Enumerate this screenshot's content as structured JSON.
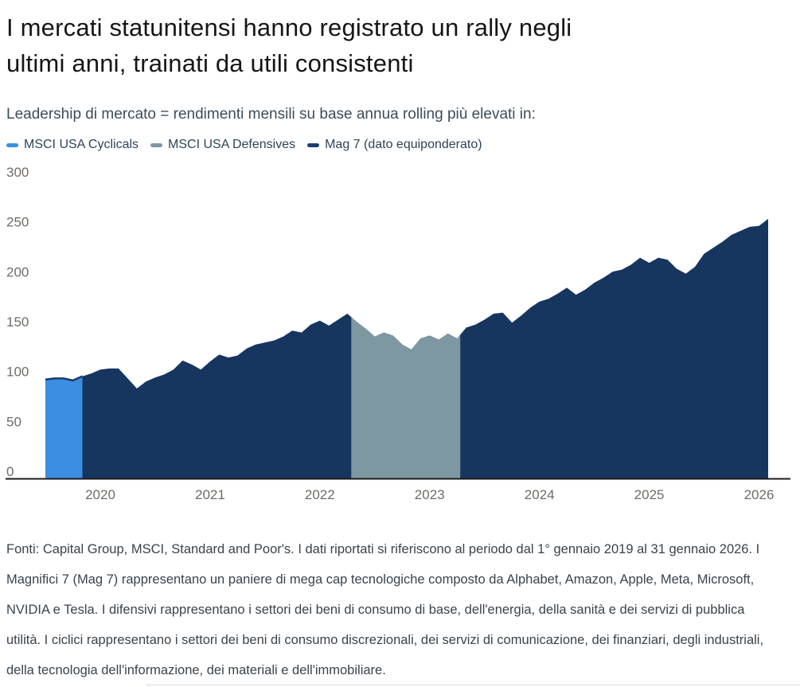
{
  "title_lines": [
    "I mercati statunitensi hanno registrato un rally negli",
    "ultimi anni, trainati da utili consistenti"
  ],
  "subtitle": "Leadership di mercato = rendimenti mensili su base annua rolling più elevati in:",
  "legend": [
    {
      "label": "MSCI USA Cyclicals",
      "color": "#3b8ee2"
    },
    {
      "label": "MSCI USA Defensives",
      "color": "#7e98a2"
    },
    {
      "label": "Mag 7 (dato equiponderato)",
      "color": "#1b4070"
    }
  ],
  "footnote": "Fonti: Capital Group, MSCI, Standard and Poor's. I dati riportati si riferiscono al periodo dal 1° gennaio 2019 al 31 gennaio 2026. I Magnifici 7 (Mag 7) rappresentano un paniere di mega cap tecnologiche composto da Alphabet, Amazon, Apple, Meta, Microsoft, NVIDIA e Tesla. I difensivi rappresentano i settori dei beni di consumo di base, dell'energia, della sanità e dei servizi di pubblica utilità. I ciclici rappresentano i settori dei beni di consumo discrezionali, dei servizi di comunicazione, dei finanziari, degli industriali, della tecnologia dell'informazione, dei materiali e dell'immobiliare.",
  "chart_data": {
    "type": "area",
    "title": "Leadership di mercato = rendimenti mensili su base annua rolling più elevati in",
    "x_start_month": "2019-06",
    "x_end_month": "2026-01",
    "x_note": "monthly month-end points, plotted left to right",
    "ylim": [
      0,
      300
    ],
    "grid": false,
    "legend_position": "top-left",
    "y_tick_labels": [
      "0",
      "50",
      "100",
      "150",
      "200",
      "250",
      "300"
    ],
    "x_tick_labels": [
      "2020",
      "2021",
      "2022",
      "2023",
      "2024",
      "2025",
      "2026"
    ],
    "values": [
      92,
      93,
      93,
      91,
      95,
      98,
      102,
      103,
      103,
      93,
      83,
      90,
      94,
      97,
      102,
      111,
      107,
      102,
      110,
      117,
      114,
      116,
      123,
      127,
      129,
      131,
      135,
      141,
      139,
      147,
      151,
      146,
      152,
      158,
      150,
      143,
      135,
      139,
      136,
      127,
      122,
      133,
      136,
      132,
      138,
      133,
      144,
      147,
      152,
      158,
      159,
      149,
      156,
      164,
      170,
      173,
      178,
      184,
      177,
      182,
      189,
      194,
      200,
      202,
      207,
      214,
      209,
      214,
      212,
      203,
      198,
      205,
      218,
      224,
      230,
      237,
      241,
      245,
      246,
      253
    ],
    "segments": [
      {
        "name": "MSCI USA Cyclicals",
        "from": "2019-06",
        "to": "2019-10",
        "color": "#3b8ee2",
        "edge_color": "#1c3c6a"
      },
      {
        "name": "Mag 7 (dato equiponderato)",
        "from": "2019-10",
        "to": "2022-03",
        "color": "#16355f"
      },
      {
        "name": "MSCI USA Defensives",
        "from": "2022-03",
        "to": "2023-03",
        "color": "#7e98a2"
      },
      {
        "name": "Mag 7 (dato equiponderato)",
        "from": "2023-03",
        "to": "2026-01",
        "color": "#16355f"
      }
    ],
    "axis_line_color": "#1c1c1c",
    "tick_label_color": "#6f6b66"
  }
}
